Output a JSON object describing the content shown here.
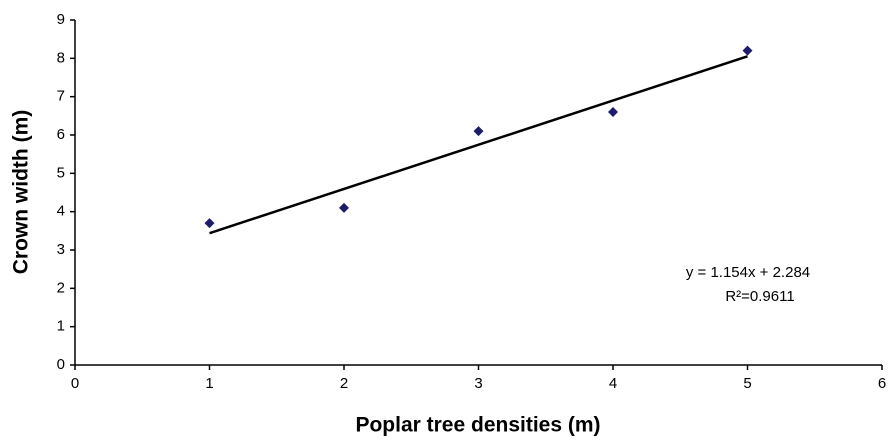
{
  "chart_data": {
    "type": "scatter",
    "x_label": "Poplar tree densities (m)",
    "y_label": "Crown width (m)",
    "x": [
      1,
      2,
      3,
      4,
      5
    ],
    "values": [
      3.7,
      4.1,
      6.1,
      6.6,
      8.2
    ],
    "color": "#1c1c6b",
    "trendline": {
      "x": [
        1,
        5
      ],
      "values": [
        3.438,
        8.054
      ],
      "color": "#000000"
    },
    "annotations": [
      "y = 1.154x + 2.284",
      "R²=0.9611"
    ],
    "xlim": [
      0,
      6
    ],
    "xticks": [
      0,
      1,
      2,
      3,
      4,
      5,
      6
    ],
    "ylim": [
      0,
      9
    ],
    "yticks": [
      0,
      1,
      2,
      3,
      4,
      5,
      6,
      7,
      8,
      9
    ],
    "grid": false
  }
}
